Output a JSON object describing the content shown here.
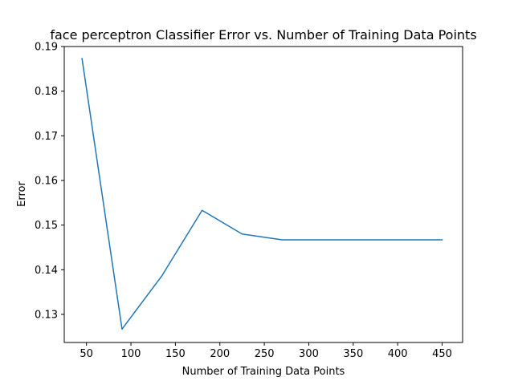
{
  "chart_data": {
    "type": "line",
    "title": "face perceptron Classifier   Error vs. Number of Training Data Points",
    "xlabel": "Number of Training Data Points",
    "ylabel": "Error",
    "xlim": [
      25,
      473
    ],
    "ylim": [
      0.1237,
      0.19
    ],
    "xticks": [
      50,
      100,
      150,
      200,
      250,
      300,
      350,
      400,
      450
    ],
    "yticks": [
      0.13,
      0.14,
      0.15,
      0.16,
      0.17,
      0.18,
      0.19
    ],
    "grid": false,
    "series": [
      {
        "color": "#1f77b4",
        "x": [
          45,
          90,
          135,
          180,
          225,
          270,
          315,
          360,
          405,
          450
        ],
        "y": [
          0.1873,
          0.1267,
          0.1387,
          0.1533,
          0.148,
          0.1467,
          0.1467,
          0.1467,
          0.1467,
          0.1467
        ]
      }
    ]
  }
}
